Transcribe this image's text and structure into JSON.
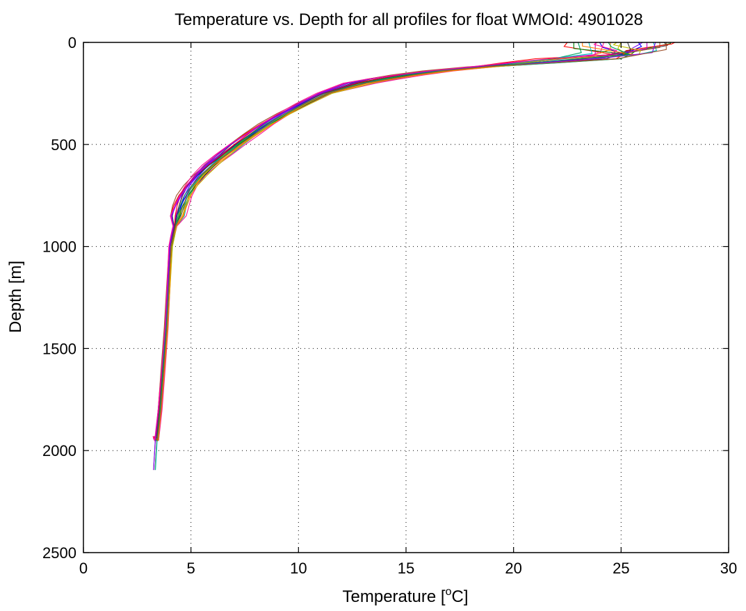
{
  "chart_data": {
    "type": "line",
    "title": "Temperature vs. Depth for all profiles for float WMOId: 4901028",
    "xlabel_prefix": "Temperature [",
    "xlabel_sup": "o",
    "xlabel_suffix": "C]",
    "ylabel": "Depth [m]",
    "xlim": [
      0,
      30
    ],
    "ylim": [
      0,
      2500
    ],
    "y_reversed": true,
    "grid": true,
    "x_ticks": [
      0,
      5,
      10,
      15,
      20,
      25,
      30
    ],
    "y_ticks": [
      0,
      500,
      1000,
      1500,
      2000,
      2500
    ],
    "x_tick_labels": [
      "0",
      "5",
      "10",
      "15",
      "20",
      "25",
      "30"
    ],
    "y_tick_labels": [
      "0",
      "500",
      "1000",
      "1500",
      "2000",
      "2500"
    ],
    "series_colors": [
      "#0000ff",
      "#008000",
      "#ff0000",
      "#00bfbf",
      "#bf00bf",
      "#bfbf00",
      "#404040",
      "#ff7f00",
      "#7f00ff",
      "#00a060",
      "#a0522d",
      "#ff1493"
    ],
    "mean_profile": {
      "depth": [
        0,
        20,
        40,
        60,
        80,
        100,
        120,
        140,
        160,
        180,
        200,
        250,
        300,
        350,
        400,
        450,
        500,
        550,
        600,
        650,
        700,
        750,
        800,
        850,
        900,
        950,
        1000,
        1200,
        1400,
        1600,
        1800,
        1950
      ],
      "temp": [
        25.5,
        25.5,
        25.4,
        25.2,
        23.5,
        21.0,
        18.5,
        16.5,
        15.0,
        13.8,
        12.8,
        11.2,
        10.2,
        9.3,
        8.5,
        7.8,
        7.1,
        6.5,
        5.9,
        5.4,
        5.0,
        4.7,
        4.5,
        4.35,
        4.25,
        4.15,
        4.05,
        3.95,
        3.85,
        3.7,
        3.55,
        3.4
      ]
    },
    "series": [
      {
        "surface_temp": 24.0,
        "surface_depth": 25,
        "shift": 0.0
      },
      {
        "surface_temp": 27.3,
        "surface_depth": 5,
        "shift": 0.3
      },
      {
        "surface_temp": 22.5,
        "surface_depth": 20,
        "shift": -0.4
      },
      {
        "surface_temp": 26.5,
        "surface_depth": 40,
        "shift": 0.5
      },
      {
        "surface_temp": 23.8,
        "surface_depth": 60,
        "shift": -0.2
      },
      {
        "surface_temp": 25.0,
        "surface_depth": 30,
        "shift": 0.2
      },
      {
        "surface_temp": 27.0,
        "surface_depth": 15,
        "shift": -0.3
      },
      {
        "surface_temp": 24.5,
        "surface_depth": 35,
        "shift": 0.4
      },
      {
        "surface_temp": 26.0,
        "surface_depth": 10,
        "shift": -0.1
      },
      {
        "surface_temp": 23.0,
        "surface_depth": 50,
        "shift": 0.1
      },
      {
        "surface_temp": 26.8,
        "surface_depth": 25,
        "shift": -0.5
      },
      {
        "surface_temp": 24.2,
        "surface_depth": 45,
        "shift": 0.6
      },
      {
        "surface_temp": 25.8,
        "surface_depth": 20,
        "shift": 0.0
      },
      {
        "surface_temp": 22.8,
        "surface_depth": 30,
        "shift": 0.3
      },
      {
        "surface_temp": 27.5,
        "surface_depth": 8,
        "shift": -0.2
      },
      {
        "surface_temp": 23.5,
        "surface_depth": 55,
        "shift": 0.2
      },
      {
        "surface_temp": 26.2,
        "surface_depth": 30,
        "shift": -0.4
      },
      {
        "surface_temp": 24.8,
        "surface_depth": 12,
        "shift": 0.5
      },
      {
        "surface_temp": 25.3,
        "surface_depth": 40,
        "shift": -0.1
      },
      {
        "surface_temp": 23.2,
        "surface_depth": 18,
        "shift": 0.4
      },
      {
        "surface_temp": 26.6,
        "surface_depth": 50,
        "shift": -0.3
      },
      {
        "surface_temp": 24.4,
        "surface_depth": 22,
        "shift": 0.1
      },
      {
        "surface_temp": 27.1,
        "surface_depth": 35,
        "shift": 0.2
      },
      {
        "surface_temp": 23.9,
        "surface_depth": 10,
        "shift": -0.5
      }
    ]
  }
}
